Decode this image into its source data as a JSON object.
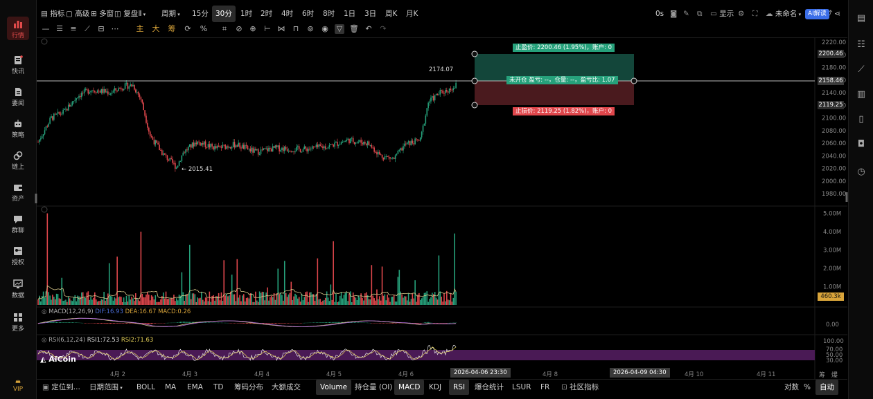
{
  "sidebar": {
    "items": [
      {
        "label": "行情",
        "icon": "chart-bar-icon",
        "active": true
      },
      {
        "label": "快讯",
        "icon": "news-flash-icon"
      },
      {
        "label": "要闻",
        "icon": "document-icon"
      },
      {
        "label": "策略",
        "icon": "robot-icon"
      },
      {
        "label": "链上",
        "icon": "chain-icon"
      },
      {
        "label": "资产",
        "icon": "wallet-icon"
      },
      {
        "label": "群聊",
        "icon": "chat-icon"
      },
      {
        "label": "授权",
        "icon": "key-icon"
      },
      {
        "label": "数据",
        "icon": "monitor-icon"
      },
      {
        "label": "更多",
        "icon": "grid-icon"
      }
    ],
    "vip_label": "VIP"
  },
  "topbar": {
    "indicator_label": "指标",
    "advanced_label": "高级",
    "multi_chart_label": "多窗",
    "replay_label": "复盘",
    "period_label": "周期",
    "intervals": [
      "15分",
      "30分",
      "1时",
      "2时",
      "4时",
      "6时",
      "8时",
      "1日",
      "3日",
      "周K",
      "月K"
    ],
    "selected_interval": "30分",
    "countdown": "0s",
    "display_label": "显示",
    "layout_name": "未命名",
    "ai_label": "AI解读"
  },
  "drawing_toolbar": {
    "main_label": "主",
    "big_label": "大",
    "chip_label": "筹"
  },
  "chart": {
    "y_ticks": [
      "2220.00",
      "2200.00",
      "2180.00",
      "2160.00",
      "2140.00",
      "2120.00",
      "2100.00",
      "2080.00",
      "2060.00",
      "2040.00",
      "2020.00",
      "2000.00",
      "1980.00"
    ],
    "take_profit_price": "2200.46",
    "current_price": "2158.46",
    "stop_loss_price": "2119.25",
    "high_label": "2174.07",
    "low_label": "← 2015.41",
    "take_profit_tag": "止盈价: 2200.46 (1.95%)，账户: 0",
    "position_tag": "未开仓 盈亏: --，仓量: --，盈亏比: 1.07",
    "stop_loss_tag": "止损价: 2119.25 (1.82%)，账户: 0",
    "volume_ticks": [
      "5.00M",
      "4.00M",
      "3.00M",
      "2.00M",
      "1.00M"
    ],
    "volume_current": "460.3k",
    "macd_label": "MACD(12,26,9)",
    "macd_dif": "DIF:16.93",
    "macd_dea": "DEA:16.67",
    "macd_val": "MACD:0.26",
    "macd_tick": "0.00",
    "rsi_label": "RSI(6,12,24)",
    "rsi1": "RSI1:72.53",
    "rsi2": "RSI2:71.63",
    "rsi_ticks": [
      "100.00",
      "70.00",
      "50.00",
      "30.00"
    ],
    "brand": "AiCoin",
    "x_labels": [
      "4月 2",
      "4月 3",
      "4月 4",
      "4月 5",
      "4月 6",
      "4月 8",
      "4月 10",
      "4月 11"
    ],
    "crosshair_time": "2026-04-06 23:30",
    "target_time": "2026-04-09 04:30",
    "right_labels": {
      "chip": "筹",
      "burst": "爆"
    }
  },
  "bottombar": {
    "locate_label": "定位到...",
    "date_range_label": "日期范围",
    "indicators": [
      "BOLL",
      "MA",
      "EMA",
      "TD",
      "筹码分布",
      "大额成交"
    ],
    "sub_indicators": [
      "Volume",
      "持仓量 (OI)",
      "MACD",
      "KDJ",
      "RSI",
      "爆仓统计",
      "LSUR",
      "FR"
    ],
    "selected_sub": [
      "Volume",
      "MACD",
      "RSI"
    ],
    "community_label": "社区指标",
    "log_label": "对数",
    "percent_label": "%",
    "auto_label": "自动"
  },
  "colors": {
    "up": "#26a17b",
    "down": "#e0474c",
    "accent_blue": "#3b6ee8",
    "gold": "#d9a43a"
  }
}
